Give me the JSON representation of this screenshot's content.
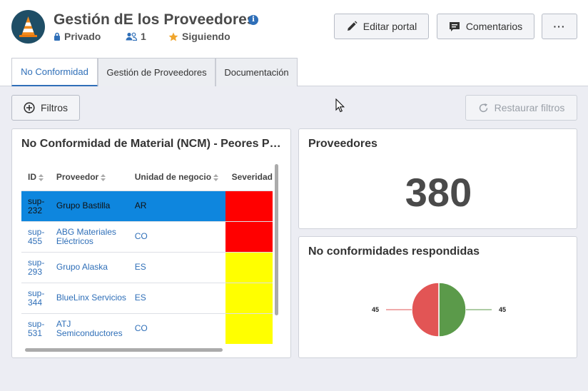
{
  "header": {
    "title": "Gestión dE los Proveedores",
    "info_icon": "info-icon",
    "privacy": "Privado",
    "members": "1",
    "following": "Siguiendo"
  },
  "toolbar": {
    "edit_label": "Editar portal",
    "comments_label": "Comentarios",
    "more_label": "···"
  },
  "tabs": [
    {
      "label": "No Conformidad",
      "active": true
    },
    {
      "label": "Gestión de Proveedores",
      "active": false
    },
    {
      "label": "Documentación",
      "active": false
    }
  ],
  "filters": {
    "filters_label": "Filtros",
    "reset_label": "Restaurar filtros"
  },
  "ncm_card": {
    "title": "No Conformidad de Material (NCM) - Peores Proveedores",
    "columns": [
      "ID",
      "Proveedor",
      "Unidad de negocio",
      "Severidad"
    ],
    "rows": [
      {
        "id": "sup-232",
        "provider": "Grupo Bastilla",
        "unit": "AR",
        "severity_color": "#ff0000",
        "selected": true
      },
      {
        "id": "sup-455",
        "provider": "ABG Materiales Eléctricos",
        "unit": "CO",
        "severity_color": "#ff0000",
        "selected": false
      },
      {
        "id": "sup-293",
        "provider": "Grupo Alaska",
        "unit": "ES",
        "severity_color": "#ffff00",
        "selected": false
      },
      {
        "id": "sup-344",
        "provider": "BlueLinx Servicios",
        "unit": "ES",
        "severity_color": "#ffff00",
        "selected": false
      },
      {
        "id": "sup-531",
        "provider": "ATJ Semiconductores",
        "unit": "CO",
        "severity_color": "#ffff00",
        "selected": false
      }
    ]
  },
  "prov_card": {
    "title": "Proveedores",
    "value": "380"
  },
  "resp_card": {
    "title": "No conformidades respondidas"
  },
  "chart_data": {
    "type": "pie",
    "title": "No conformidades respondidas",
    "slices": [
      {
        "label": "45",
        "value": 45,
        "color": "#5b9a4a"
      },
      {
        "label": "45",
        "value": 45,
        "color": "#e25555"
      }
    ]
  },
  "colors": {
    "accent": "#2f6fb8",
    "selected_row": "#0e86de",
    "logo_bg": "#1f4e66"
  }
}
